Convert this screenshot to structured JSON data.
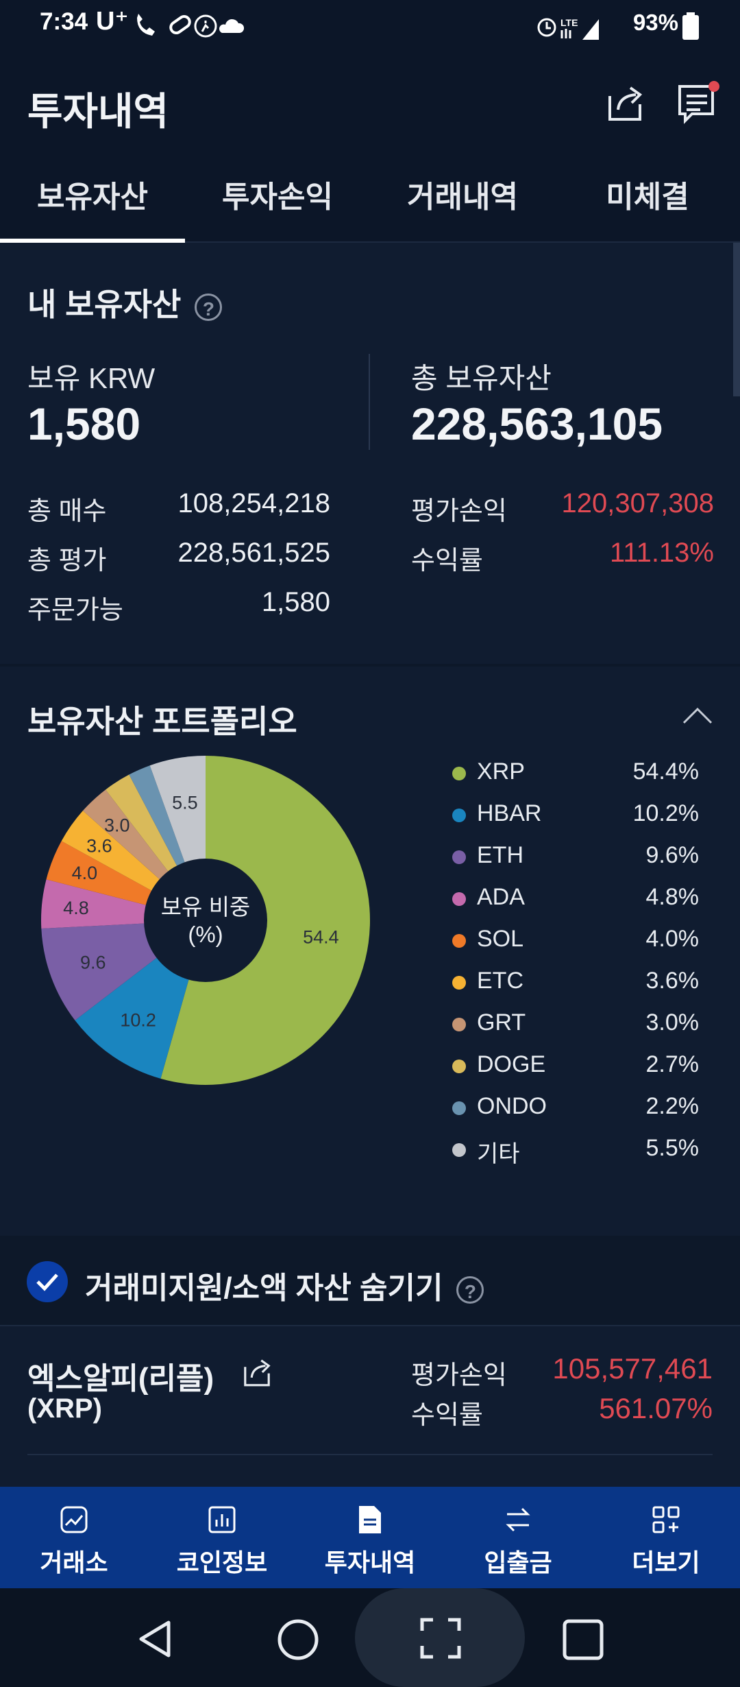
{
  "status_bar": {
    "time": "7:34",
    "carrier": "U⁺",
    "left_icons": [
      "call-icon",
      "wifi-calling-icon",
      "pill-icon",
      "running-icon",
      "cloud-icon"
    ],
    "battery": "93%",
    "network": "LTE"
  },
  "header": {
    "title": "투자내역",
    "icons": [
      "share-icon",
      "notice-icon"
    ]
  },
  "tabs": [
    {
      "label": "보유자산",
      "active": true
    },
    {
      "label": "투자손익",
      "active": false
    },
    {
      "label": "거래내역",
      "active": false
    },
    {
      "label": "미체결",
      "active": false
    }
  ],
  "holdings": {
    "title": "내 보유자산",
    "krw_label": "보유 KRW",
    "krw_value": "1,580",
    "total_label": "총 보유자산",
    "total_value": "228,563,105",
    "buy_label": "총 매수",
    "buy_value": "108,254,218",
    "eval_label": "총 평가",
    "eval_value": "228,561,525",
    "orderable_label": "주문가능",
    "orderable_value": "1,580",
    "pnl_label": "평가손익",
    "pnl_value": "120,307,308",
    "rate_label": "수익률",
    "rate_value": "111.13%"
  },
  "portfolio": {
    "title": "보유자산 포트폴리오",
    "center_label_1": "보유 비중",
    "center_label_2": "(%)"
  },
  "chart_data": {
    "type": "pie",
    "title": "보유자산 포트폴리오",
    "center_text": "보유 비중 (%)",
    "categories": [
      "XRP",
      "HBAR",
      "ETH",
      "ADA",
      "SOL",
      "ETC",
      "GRT",
      "DOGE",
      "ONDO",
      "기타"
    ],
    "values": [
      54.4,
      10.2,
      9.6,
      4.8,
      4.0,
      3.6,
      3.0,
      2.7,
      2.2,
      5.5
    ],
    "value_labels": [
      "54.4%",
      "10.2%",
      "9.6%",
      "4.8%",
      "4.0%",
      "3.6%",
      "3.0%",
      "2.7%",
      "2.2%",
      "5.5%"
    ],
    "slice_labels": [
      "54.4",
      "10.2",
      "9.6",
      "4.8",
      "4.0",
      "3.6",
      "3.0",
      "",
      "",
      "5.5"
    ],
    "colors": [
      "#9bb84c",
      "#1a85bf",
      "#7a5fa6",
      "#c46aad",
      "#f07a28",
      "#f6b233",
      "#c69574",
      "#d9ba5a",
      "#6a93b0",
      "#c3c6cc"
    ],
    "legend_position": "right",
    "donut": true
  },
  "hide_toggle": {
    "label": "거래미지원/소액 자산 숨기기",
    "checked": true
  },
  "asset_row": {
    "name": "엑스알피(리플)",
    "ticker": "(XRP)",
    "pnl_label": "평가손익",
    "pnl_value": "105,577,461",
    "rate_label": "수익률",
    "rate_value": "561.07%"
  },
  "bottom_nav": [
    {
      "label": "거래소",
      "icon": "exchange-chart-icon"
    },
    {
      "label": "코인정보",
      "icon": "coin-info-icon"
    },
    {
      "label": "투자내역",
      "icon": "document-icon"
    },
    {
      "label": "입출금",
      "icon": "transfer-arrows-icon"
    },
    {
      "label": "더보기",
      "icon": "more-grid-icon"
    }
  ],
  "colors": {
    "background": "#0d1829",
    "accent_blue": "#093687",
    "loss_red": "#e04a53"
  }
}
